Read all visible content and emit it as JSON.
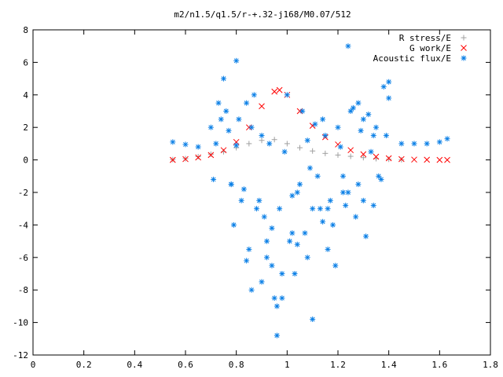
{
  "chart_data": {
    "type": "scatter",
    "title": "m2/n1.5/q1.5/r-+.32-j168/M0.07/512",
    "xlabel": "",
    "ylabel": "",
    "xlim": [
      0,
      1.8
    ],
    "ylim": [
      -12,
      8
    ],
    "xticks": [
      "0",
      "0.2",
      "0.4",
      "0.6",
      "0.8",
      "1",
      "1.2",
      "1.4",
      "1.6",
      "1.8"
    ],
    "yticks": [
      "8",
      "6",
      "4",
      "2",
      "0",
      "-2",
      "-4",
      "-6",
      "-8",
      "-10",
      "-12"
    ],
    "grid": false,
    "legend_position": "top-right",
    "series": [
      {
        "name": "R stress/E",
        "marker": "+",
        "color": "#a0a0a0",
        "x": [
          0.55,
          0.6,
          0.65,
          0.7,
          0.75,
          0.8,
          0.85,
          0.9,
          0.95,
          1.0,
          1.05,
          1.1,
          1.15,
          1.2,
          1.25,
          1.3,
          1.35,
          1.4,
          1.45
        ],
        "y": [
          0.02,
          0.08,
          0.2,
          0.35,
          0.5,
          0.75,
          1.0,
          1.2,
          1.25,
          1.0,
          0.75,
          0.55,
          0.4,
          0.3,
          0.22,
          0.14,
          0.08,
          0.04,
          0.01
        ]
      },
      {
        "name": "G work/E",
        "marker": "x",
        "color": "#ff0000",
        "x": [
          0.55,
          0.6,
          0.65,
          0.7,
          0.75,
          0.8,
          0.85,
          0.9,
          0.95,
          0.97,
          1.0,
          1.05,
          1.1,
          1.15,
          1.2,
          1.25,
          1.3,
          1.35,
          1.4,
          1.45,
          1.5,
          1.55,
          1.6,
          1.63
        ],
        "y": [
          0.0,
          0.05,
          0.15,
          0.3,
          0.6,
          1.1,
          2.0,
          3.3,
          4.2,
          4.3,
          4.0,
          3.0,
          2.1,
          1.4,
          0.95,
          0.6,
          0.35,
          0.2,
          0.1,
          0.05,
          0.02,
          0.01,
          0.0,
          0.0
        ]
      },
      {
        "name": "Acoustic flux/E",
        "marker": "*",
        "color": "#0a7fe6",
        "x": [
          0.55,
          0.6,
          0.65,
          0.7,
          0.72,
          0.74,
          0.76,
          0.78,
          0.8,
          0.82,
          0.84,
          0.86,
          0.88,
          0.9,
          0.92,
          0.94,
          0.96,
          0.98,
          1.0,
          1.02,
          1.04,
          1.06,
          1.08,
          1.1,
          1.12,
          1.14,
          1.16,
          1.18,
          1.2,
          1.22,
          1.24,
          1.26,
          1.28,
          1.3,
          1.32,
          1.34,
          1.36,
          1.38,
          1.4,
          1.45,
          1.5,
          1.55,
          1.6,
          1.63,
          0.71,
          0.73,
          0.77,
          0.79,
          0.81,
          0.83,
          0.85,
          0.87,
          0.89,
          0.91,
          0.93,
          0.95,
          0.97,
          0.99,
          1.01,
          1.03,
          1.05,
          1.07,
          1.09,
          1.11,
          1.13,
          1.15,
          1.17,
          1.19,
          1.21,
          1.23,
          1.25,
          1.27,
          1.29,
          1.31,
          1.33,
          1.35,
          1.37,
          1.39,
          0.75,
          0.8,
          0.86,
          0.92,
          0.96,
          1.02,
          1.08,
          1.14,
          1.22,
          1.28,
          1.34,
          1.4,
          0.78,
          0.84,
          0.9,
          0.94,
          0.98,
          1.04,
          1.1,
          1.16,
          1.24,
          1.3
        ],
        "y": [
          1.1,
          0.95,
          0.8,
          2.0,
          1.0,
          2.5,
          3.0,
          -1.5,
          6.1,
          -2.5,
          3.5,
          2.0,
          -3.0,
          1.5,
          -5.0,
          -6.5,
          -10.8,
          -7.0,
          4.0,
          -4.5,
          -2.0,
          3.0,
          -6.0,
          -3.0,
          -1.0,
          2.5,
          -5.5,
          -4.0,
          2.0,
          -2.0,
          7.0,
          3.2,
          -1.5,
          -2.5,
          2.8,
          1.5,
          -1.0,
          4.5,
          3.8,
          1.0,
          1.0,
          1.0,
          1.1,
          1.3,
          -1.2,
          3.5,
          1.8,
          -4.0,
          2.5,
          -1.8,
          -5.5,
          4.0,
          -2.5,
          -3.5,
          1.0,
          -8.5,
          -3.0,
          0.5,
          -5.0,
          -7.0,
          -1.5,
          -4.5,
          -0.5,
          2.2,
          -3.0,
          1.5,
          -2.5,
          -6.5,
          0.8,
          -2.8,
          3.0,
          -3.5,
          1.8,
          -4.7,
          0.5,
          2.0,
          -1.2,
          1.5,
          5.0,
          0.9,
          -8.0,
          -6.0,
          -9.0,
          -2.2,
          1.2,
          -3.8,
          -1.0,
          3.5,
          -2.8,
          4.8,
          -1.5,
          -6.2,
          -7.5,
          -4.2,
          -8.5,
          -5.2,
          -9.8,
          -3.0,
          -2.0,
          2.5
        ]
      }
    ]
  }
}
